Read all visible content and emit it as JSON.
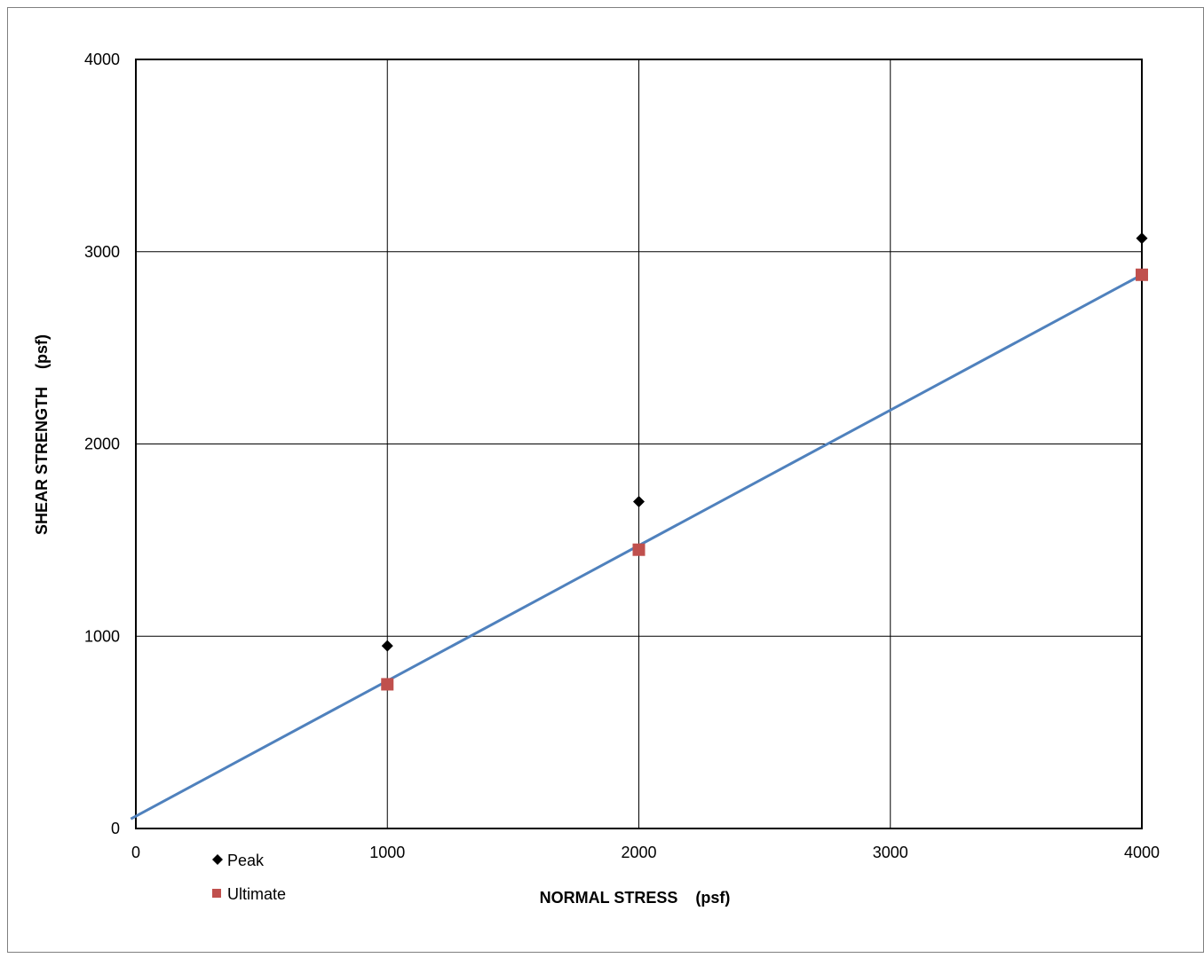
{
  "chart_data": {
    "type": "scatter",
    "title": "",
    "xlabel": "NORMAL STRESS    (psf)",
    "ylabel": "SHEAR STRENGTH    (psf)",
    "xlim": [
      0,
      4000
    ],
    "ylim": [
      0,
      4000
    ],
    "xticks": [
      "0",
      "1000",
      "2000",
      "3000",
      "4000"
    ],
    "yticks": [
      "0",
      "1000",
      "2000",
      "3000",
      "4000"
    ],
    "grid": true,
    "legend_position": "bottom-left",
    "series": [
      {
        "name": "Peak",
        "marker": "diamond",
        "color": "#000000",
        "x": [
          1000,
          2000,
          4000
        ],
        "y": [
          950,
          1700,
          3070
        ]
      },
      {
        "name": "Ultimate",
        "marker": "square",
        "color": "#c0504d",
        "x": [
          1000,
          2000,
          4000
        ],
        "y": [
          750,
          1450,
          2880
        ]
      }
    ],
    "trendline": {
      "color": "#4f81bd",
      "x": [
        -20,
        4000
      ],
      "y": [
        50,
        2880
      ]
    }
  }
}
